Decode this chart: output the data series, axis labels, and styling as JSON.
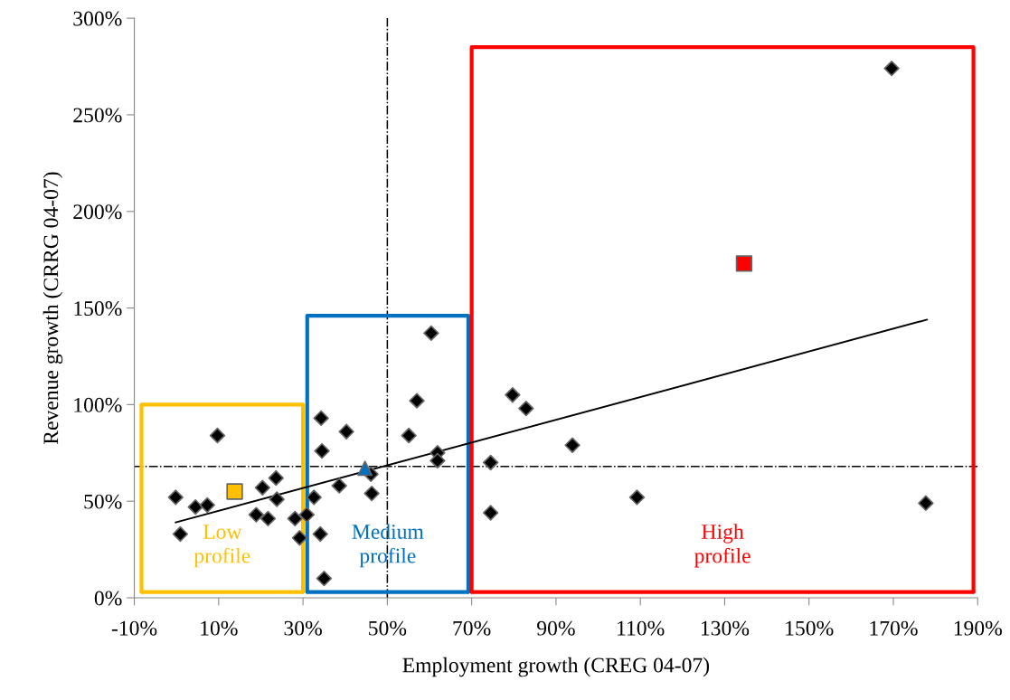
{
  "chart_data": {
    "type": "scatter",
    "xlabel": "Employment growth (CREG 04-07)",
    "ylabel": "Revenue growth (CRRG 04-07)",
    "xlim": [
      -10,
      190
    ],
    "ylim": [
      0,
      300
    ],
    "xticks": [
      {
        "value": -10,
        "label": "-10%"
      },
      {
        "value": 10,
        "label": "10%"
      },
      {
        "value": 30,
        "label": "30%"
      },
      {
        "value": 50,
        "label": "50%"
      },
      {
        "value": 70,
        "label": "70%"
      },
      {
        "value": 90,
        "label": "90%"
      },
      {
        "value": 110,
        "label": "110%"
      },
      {
        "value": 130,
        "label": "130%"
      },
      {
        "value": 150,
        "label": "150%"
      },
      {
        "value": 170,
        "label": "170%"
      },
      {
        "value": 190,
        "label": "190%"
      }
    ],
    "yticks": [
      {
        "value": 0,
        "label": "0%"
      },
      {
        "value": 50,
        "label": "50%"
      },
      {
        "value": 100,
        "label": "100%"
      },
      {
        "value": 150,
        "label": "150%"
      },
      {
        "value": 200,
        "label": "200%"
      },
      {
        "value": 250,
        "label": "250%"
      },
      {
        "value": 300,
        "label": "300%"
      }
    ],
    "grid": false,
    "legend": false,
    "ref_lines": [
      {
        "axis": "x",
        "value": 50,
        "color": "#000000",
        "line_style": "dashdot"
      },
      {
        "axis": "y",
        "value": 68,
        "color": "#000000",
        "line_style": "dashdot"
      }
    ],
    "series": [
      {
        "type": "line",
        "name": "Low profile",
        "color": "#ffc000",
        "marker": "none",
        "x": [
          -8.3,
          -8.3,
          30,
          30
        ],
        "values": [
          3,
          100,
          100,
          3
        ]
      },
      {
        "type": "line",
        "color": "#ffc000",
        "marker": "none",
        "x": [
          -8.3,
          30
        ],
        "values": [
          3,
          3
        ]
      },
      {
        "type": "line",
        "name": "Medium profile",
        "color": "#0070c0",
        "marker": "none",
        "x": [
          31,
          31,
          69.2,
          69.2
        ],
        "values": [
          3,
          146,
          146,
          3
        ]
      },
      {
        "type": "line",
        "color": "#0070c0",
        "marker": "none",
        "x": [
          31,
          69.2
        ],
        "values": [
          3,
          3
        ]
      },
      {
        "type": "line",
        "name": "High profile",
        "color": "#ff0000",
        "marker": "none",
        "x": [
          70,
          70,
          189,
          189
        ],
        "values": [
          3,
          285,
          285,
          3
        ]
      },
      {
        "type": "line",
        "color": "#ff0000",
        "marker": "none",
        "x": [
          70,
          189
        ],
        "values": [
          3,
          3
        ]
      },
      {
        "type": "line",
        "color": "#000000",
        "marker": "none",
        "x": [
          -0.2,
          178
        ],
        "values": [
          39,
          144
        ]
      },
      {
        "color": "#000000",
        "marker": "diamond",
        "x": [
          -0.2,
          0.9,
          4.5,
          7.3,
          9.7,
          18.9,
          20.4,
          21.7,
          23.6,
          23.8,
          28.1,
          29.2,
          30.9,
          32.6,
          34.1,
          34.3,
          34.5,
          35,
          38.6,
          40.3,
          46.1,
          46.3,
          55.1,
          57,
          60.4,
          61.9,
          61.9,
          74.5,
          74.5,
          79.7,
          82.9,
          93.9,
          109.2,
          169.6,
          177.7
        ],
        "values": [
          52,
          33,
          47,
          48,
          84,
          43,
          57,
          41,
          62,
          51,
          41,
          31,
          43,
          52,
          33,
          93,
          76,
          10,
          58,
          86,
          64,
          54,
          84,
          102,
          137,
          75,
          71,
          70,
          44,
          105,
          98,
          79,
          52,
          274,
          49
        ]
      },
      {
        "color": "#ffc000",
        "marker": "square",
        "x": [
          13.8
        ],
        "values": [
          55
        ]
      },
      {
        "color": "#0070c0",
        "marker": "triangle",
        "x": [
          44.7
        ],
        "values": [
          67
        ]
      },
      {
        "color": "#ff0000",
        "marker": "square",
        "x": [
          134.6
        ],
        "values": [
          173
        ]
      }
    ]
  }
}
